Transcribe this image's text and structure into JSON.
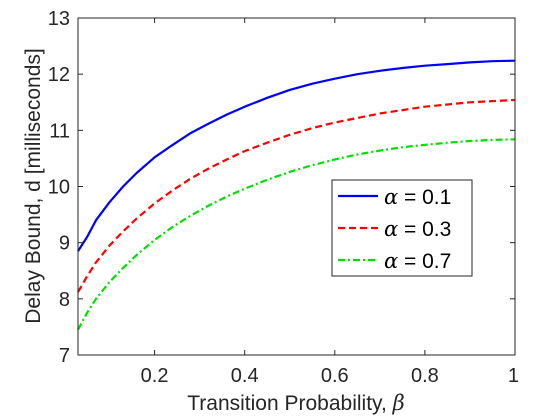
{
  "chart_data": {
    "type": "line",
    "xlabel_text": "Transition Probability, ",
    "xlabel_symbol": "β",
    "ylabel": "Delay Bound, d [milliseconds]",
    "xlim": [
      0.03,
      1.0
    ],
    "ylim": [
      7,
      13
    ],
    "xticks": [
      0.2,
      0.4,
      0.6,
      0.8,
      1.0
    ],
    "xtick_labels": [
      "0.2",
      "0.4",
      "0.6",
      "0.8",
      "1"
    ],
    "yticks": [
      7,
      8,
      9,
      10,
      11,
      12,
      13
    ],
    "ytick_labels": [
      "7",
      "8",
      "9",
      "10",
      "11",
      "12",
      "13"
    ],
    "grid": false,
    "legend_position": "center-right",
    "x": [
      0.03,
      0.05,
      0.07,
      0.1,
      0.13,
      0.16,
      0.2,
      0.24,
      0.28,
      0.32,
      0.36,
      0.4,
      0.45,
      0.5,
      0.55,
      0.6,
      0.65,
      0.7,
      0.75,
      0.8,
      0.85,
      0.9,
      0.95,
      1.0
    ],
    "series": [
      {
        "symbol": "α",
        "name_suffix": " = 0.1",
        "color": "#0000ff",
        "dash": "solid",
        "values": [
          8.85,
          9.1,
          9.4,
          9.72,
          10.0,
          10.24,
          10.52,
          10.74,
          10.95,
          11.12,
          11.28,
          11.42,
          11.58,
          11.72,
          11.83,
          11.92,
          12.0,
          12.06,
          12.11,
          12.15,
          12.18,
          12.21,
          12.23,
          12.24
        ]
      },
      {
        "symbol": "α",
        "name_suffix": " = 0.3",
        "color": "#ff0000",
        "dash": "dashed",
        "values": [
          8.12,
          8.4,
          8.65,
          8.95,
          9.2,
          9.43,
          9.7,
          9.93,
          10.14,
          10.32,
          10.48,
          10.63,
          10.78,
          10.92,
          11.04,
          11.14,
          11.22,
          11.3,
          11.36,
          11.42,
          11.46,
          11.5,
          11.52,
          11.54
        ]
      },
      {
        "symbol": "α",
        "name_suffix": " = 0.7",
        "color": "#00e000",
        "dash": "dashdot",
        "values": [
          7.45,
          7.75,
          8.0,
          8.3,
          8.55,
          8.78,
          9.05,
          9.28,
          9.48,
          9.66,
          9.82,
          9.96,
          10.12,
          10.26,
          10.38,
          10.48,
          10.57,
          10.64,
          10.7,
          10.74,
          10.78,
          10.81,
          10.83,
          10.84
        ]
      }
    ]
  }
}
